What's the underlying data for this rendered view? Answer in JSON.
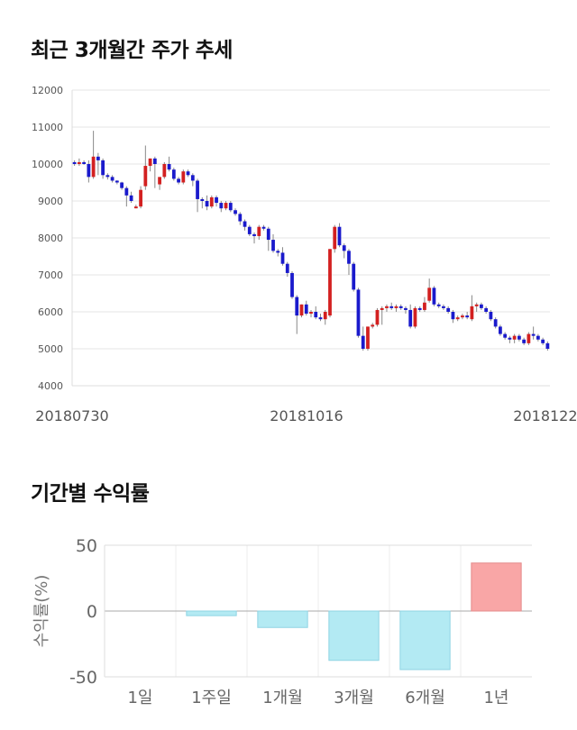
{
  "titles": {
    "price_trend": "최근 3개월간 주가 추세",
    "period_returns": "기간별 수익률"
  },
  "colors": {
    "up": "#d32020",
    "down": "#1a1acc",
    "positive_bar": "#f9a6a6",
    "negative_bar": "#b3eaf3",
    "grid": "#e6e6e6"
  },
  "chart_data": [
    {
      "type": "candlestick",
      "title": "최근 3개월간 주가 추세",
      "ylim": [
        4000,
        12000
      ],
      "yticks": [
        4000,
        5000,
        6000,
        7000,
        8000,
        9000,
        10000,
        11000,
        12000
      ],
      "x_labels": [
        "20180730",
        "20181016",
        "20181224"
      ],
      "grid": true,
      "candles": [
        [
          10050,
          10100,
          9950,
          10000
        ],
        [
          10000,
          10150,
          9950,
          10050
        ],
        [
          10050,
          10100,
          9980,
          10000
        ],
        [
          10000,
          10100,
          9500,
          9650
        ],
        [
          9650,
          10900,
          9600,
          10200
        ],
        [
          10200,
          10300,
          9700,
          10100
        ],
        [
          10100,
          10150,
          9600,
          9700
        ],
        [
          9700,
          9750,
          9580,
          9650
        ],
        [
          9650,
          9700,
          9500,
          9550
        ],
        [
          9550,
          9560,
          9450,
          9500
        ],
        [
          9500,
          9520,
          9300,
          9350
        ],
        [
          9350,
          9400,
          8850,
          9150
        ],
        [
          9150,
          9250,
          8950,
          9000
        ],
        [
          8850,
          8900,
          8800,
          8850
        ],
        [
          8850,
          9400,
          8800,
          9300
        ],
        [
          9400,
          10500,
          9300,
          9950
        ],
        [
          9950,
          10150,
          9800,
          10150
        ],
        [
          10150,
          10200,
          9350,
          10000
        ],
        [
          9450,
          9600,
          9300,
          9650
        ],
        [
          9650,
          10050,
          9600,
          10000
        ],
        [
          10000,
          10200,
          9800,
          9850
        ],
        [
          9850,
          9900,
          9550,
          9600
        ],
        [
          9600,
          9650,
          9450,
          9500
        ],
        [
          9500,
          9850,
          9450,
          9800
        ],
        [
          9800,
          9850,
          9650,
          9700
        ],
        [
          9700,
          9750,
          9400,
          9550
        ],
        [
          9550,
          9600,
          8700,
          9050
        ],
        [
          9050,
          9100,
          8800,
          9000
        ],
        [
          9000,
          9150,
          8750,
          8850
        ],
        [
          8850,
          9150,
          8800,
          9100
        ],
        [
          9100,
          9150,
          8850,
          8950
        ],
        [
          8950,
          9000,
          8700,
          8800
        ],
        [
          8800,
          9000,
          8750,
          8950
        ],
        [
          8950,
          9000,
          8700,
          8750
        ],
        [
          8750,
          8800,
          8600,
          8650
        ],
        [
          8650,
          8700,
          8350,
          8450
        ],
        [
          8450,
          8500,
          8200,
          8300
        ],
        [
          8300,
          8350,
          8050,
          8100
        ],
        [
          8100,
          8150,
          7850,
          8050
        ],
        [
          8050,
          8350,
          7950,
          8300
        ],
        [
          8300,
          8350,
          8200,
          8250
        ],
        [
          8250,
          8300,
          7650,
          7950
        ],
        [
          7950,
          8100,
          7600,
          7650
        ],
        [
          7650,
          7700,
          7500,
          7600
        ],
        [
          7600,
          7750,
          7250,
          7300
        ],
        [
          7300,
          7350,
          6950,
          7050
        ],
        [
          7050,
          7100,
          6350,
          6400
        ],
        [
          6400,
          6450,
          5400,
          5900
        ],
        [
          5900,
          6200,
          5850,
          6200
        ],
        [
          6200,
          6300,
          5900,
          5950
        ],
        [
          5950,
          6050,
          5850,
          6000
        ],
        [
          6000,
          6150,
          5800,
          5850
        ],
        [
          5850,
          5950,
          5750,
          5800
        ],
        [
          5800,
          6050,
          5650,
          6000
        ],
        [
          5900,
          7700,
          5850,
          7700
        ],
        [
          7700,
          8350,
          7600,
          8300
        ],
        [
          8300,
          8400,
          7750,
          7800
        ],
        [
          7800,
          7850,
          7450,
          7650
        ],
        [
          7650,
          7700,
          7000,
          7300
        ],
        [
          7300,
          7350,
          6550,
          6600
        ],
        [
          6600,
          6650,
          5300,
          5350
        ],
        [
          5350,
          5600,
          4950,
          5000
        ],
        [
          5000,
          5600,
          4950,
          5600
        ],
        [
          5600,
          5700,
          5550,
          5650
        ],
        [
          5650,
          6100,
          5600,
          6050
        ],
        [
          6050,
          6150,
          5650,
          6100
        ],
        [
          6100,
          6200,
          6000,
          6150
        ],
        [
          6150,
          6250,
          6050,
          6100
        ],
        [
          6100,
          6200,
          6000,
          6150
        ],
        [
          6150,
          6200,
          6050,
          6100
        ],
        [
          6100,
          6150,
          5950,
          6050
        ],
        [
          6050,
          6200,
          5550,
          5600
        ],
        [
          5600,
          6150,
          5550,
          6100
        ],
        [
          6100,
          6150,
          6000,
          6050
        ],
        [
          6050,
          6400,
          6000,
          6250
        ],
        [
          6300,
          6900,
          6250,
          6650
        ],
        [
          6650,
          6700,
          6150,
          6200
        ],
        [
          6200,
          6250,
          6100,
          6150
        ],
        [
          6150,
          6200,
          6050,
          6100
        ],
        [
          6100,
          6150,
          5950,
          6000
        ],
        [
          6000,
          6050,
          5700,
          5800
        ],
        [
          5800,
          5900,
          5750,
          5850
        ],
        [
          5850,
          5950,
          5800,
          5900
        ],
        [
          5900,
          6000,
          5800,
          5850
        ],
        [
          5800,
          6450,
          5750,
          6150
        ],
        [
          6150,
          6250,
          6000,
          6200
        ],
        [
          6200,
          6250,
          6050,
          6100
        ],
        [
          6100,
          6150,
          5950,
          6000
        ],
        [
          6000,
          6050,
          5750,
          5800
        ],
        [
          5800,
          5850,
          5550,
          5600
        ],
        [
          5600,
          5650,
          5350,
          5400
        ],
        [
          5400,
          5450,
          5250,
          5300
        ],
        [
          5300,
          5350,
          5150,
          5250
        ],
        [
          5250,
          5400,
          5150,
          5350
        ],
        [
          5350,
          5400,
          5200,
          5250
        ],
        [
          5250,
          5300,
          5100,
          5150
        ],
        [
          5150,
          5450,
          5100,
          5400
        ],
        [
          5400,
          5600,
          5250,
          5350
        ],
        [
          5350,
          5400,
          5200,
          5250
        ],
        [
          5250,
          5300,
          5100,
          5150
        ],
        [
          5150,
          5200,
          4950,
          5000
        ]
      ]
    },
    {
      "type": "bar",
      "title": "기간별 수익률",
      "ylabel": "수익률(%)",
      "categories": [
        "1일",
        "1주일",
        "1개월",
        "3개월",
        "6개월",
        "1년"
      ],
      "values": [
        0,
        -3.5,
        -12.5,
        -37.5,
        -44.5,
        36.5
      ],
      "ylim": [
        -50,
        50
      ],
      "yticks": [
        50,
        0,
        -50
      ],
      "grid": true
    }
  ]
}
